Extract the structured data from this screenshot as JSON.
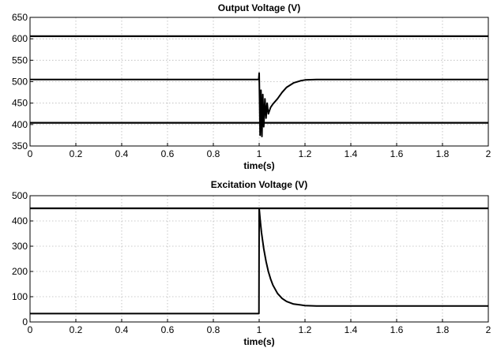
{
  "chart_data": [
    {
      "type": "line",
      "title": "Output Voltage (V)",
      "xlabel": "time(s)",
      "ylabel": "",
      "xlim": [
        0,
        2
      ],
      "ylim": [
        350,
        650
      ],
      "xticks": [
        0,
        0.2,
        0.4,
        0.6,
        0.8,
        1,
        1.2,
        1.4,
        1.6,
        1.8,
        2
      ],
      "xtick_labels": [
        "0",
        "0.2",
        "0.4",
        "0.6",
        "0.8",
        "1",
        "1.2",
        "1.4",
        "1.6",
        "1.8",
        "2"
      ],
      "yticks": [
        350,
        400,
        450,
        500,
        550,
        600,
        650
      ],
      "ytick_labels": [
        "350",
        "400",
        "450",
        "500",
        "550",
        "600",
        "650"
      ],
      "grid": true,
      "reference_lines": [
        606,
        404
      ],
      "series": [
        {
          "x": [
            0,
            0.99,
            0.998,
            1.0,
            1.004,
            1.008,
            1.012,
            1.016,
            1.02,
            1.025,
            1.03,
            1.035,
            1.04,
            1.05,
            1.06,
            1.08,
            1.1,
            1.12,
            1.15,
            1.18,
            1.2,
            1.25,
            1.3,
            1.4,
            2.0
          ],
          "y": [
            505,
            505,
            505,
            520,
            375,
            480,
            372,
            470,
            395,
            460,
            415,
            450,
            425,
            440,
            448,
            460,
            475,
            487,
            497,
            502,
            504,
            505,
            505,
            505,
            505
          ]
        }
      ]
    },
    {
      "type": "line",
      "title": "Excitation Voltage (V)",
      "xlabel": "time(s)",
      "ylabel": "",
      "xlim": [
        0,
        2
      ],
      "ylim": [
        0,
        500
      ],
      "xticks": [
        0,
        0.2,
        0.4,
        0.6,
        0.8,
        1,
        1.2,
        1.4,
        1.6,
        1.8,
        2
      ],
      "xtick_labels": [
        "0",
        "0.2",
        "0.4",
        "0.6",
        "0.8",
        "1",
        "1.2",
        "1.4",
        "1.6",
        "1.8",
        "2"
      ],
      "yticks": [
        0,
        100,
        200,
        300,
        400,
        500
      ],
      "ytick_labels": [
        "0",
        "100",
        "200",
        "300",
        "400",
        "500"
      ],
      "grid": true,
      "reference_lines": [
        450
      ],
      "series": [
        {
          "x": [
            0,
            0.999,
            1.0,
            1.005,
            1.01,
            1.02,
            1.03,
            1.04,
            1.05,
            1.06,
            1.08,
            1.1,
            1.12,
            1.15,
            1.2,
            1.25,
            1.3,
            1.4,
            2.0
          ],
          "y": [
            33,
            33,
            450,
            400,
            355,
            290,
            240,
            200,
            170,
            146,
            113,
            93,
            81,
            71,
            65,
            63,
            63,
            63,
            63
          ]
        }
      ]
    }
  ]
}
